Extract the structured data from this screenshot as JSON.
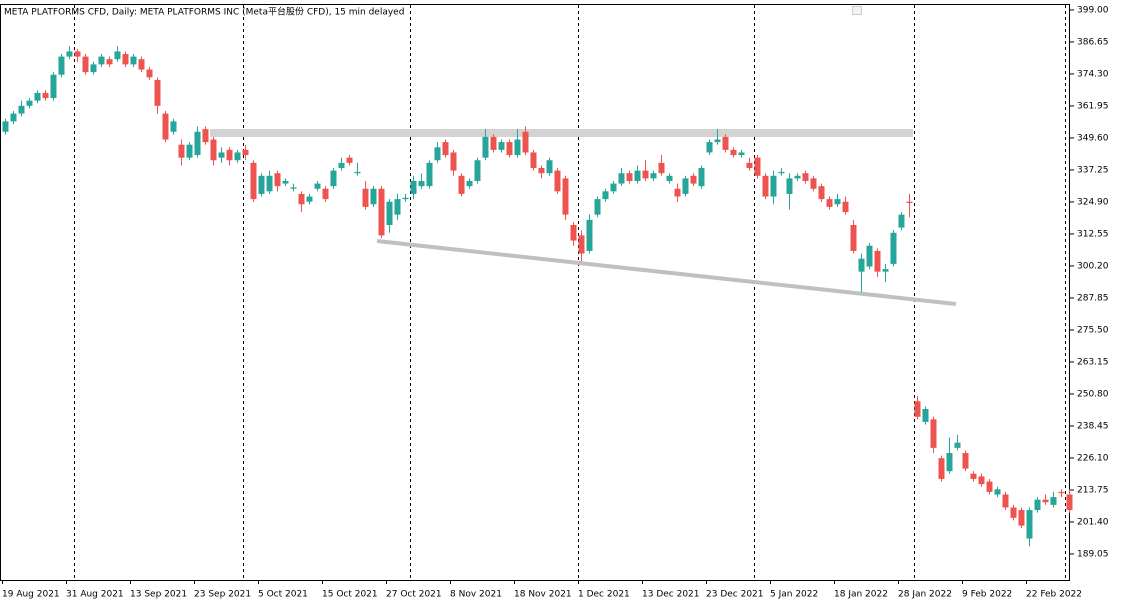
{
  "chart_data": {
    "type": "candlestick",
    "title": "META PLATFORMS CFD, Daily:  META PLATFORMS INC (Meta平台股份 CFD), 15 min delayed",
    "up_color": "#26a69a",
    "down_color": "#ef5350",
    "categories": [
      "19 Aug 2021",
      null,
      null,
      null,
      null,
      null,
      null,
      null,
      "31 Aug 2021",
      null,
      null,
      null,
      null,
      null,
      null,
      null,
      "13 Sep 2021",
      null,
      null,
      null,
      null,
      null,
      null,
      null,
      "23 Sep 2021",
      null,
      null,
      null,
      null,
      null,
      null,
      null,
      "5 Oct 2021",
      null,
      null,
      null,
      null,
      null,
      null,
      null,
      "15 Oct 2021",
      null,
      null,
      null,
      null,
      null,
      null,
      null,
      "27 Oct 2021",
      null,
      null,
      null,
      null,
      null,
      null,
      null,
      "8 Nov 2021",
      null,
      null,
      null,
      null,
      null,
      null,
      null,
      "18 Nov 2021",
      null,
      null,
      null,
      null,
      null,
      null,
      null,
      "1 Dec 2021",
      null,
      null,
      null,
      null,
      null,
      null,
      null,
      "13 Dec 2021",
      null,
      null,
      null,
      null,
      null,
      null,
      null,
      "23 Dec 2021",
      null,
      null,
      null,
      null,
      null,
      null,
      null,
      "5 Jan 2022",
      null,
      null,
      null,
      null,
      null,
      null,
      null,
      "18 Jan 2022",
      null,
      null,
      null,
      null,
      null,
      null,
      null,
      "28 Jan 2022",
      null,
      null,
      null,
      null,
      null,
      null,
      null,
      "9 Feb 2022",
      null,
      null,
      null,
      null,
      null,
      null,
      null,
      "22 Feb 2022",
      null,
      null,
      null,
      null,
      null
    ],
    "open": [
      352,
      356,
      359,
      362,
      364,
      367,
      365,
      374,
      381,
      383,
      381,
      375,
      378,
      380,
      380,
      382,
      378,
      380,
      376,
      372,
      359,
      352,
      347,
      342,
      343,
      353,
      349,
      342,
      345,
      341,
      345,
      340,
      328,
      329,
      336,
      332,
      330,
      328,
      325,
      330,
      330,
      331,
      338,
      342,
      336,
      330,
      324,
      330,
      316,
      320,
      326,
      328,
      331,
      331,
      341,
      348,
      344,
      335,
      331,
      333,
      342,
      350,
      345,
      348,
      343,
      352,
      344,
      338,
      336,
      337,
      334,
      316,
      312,
      306,
      320,
      326,
      329,
      332,
      336,
      333,
      337,
      334,
      340,
      333,
      330,
      328,
      335,
      331,
      344,
      348,
      350,
      345,
      343,
      340,
      342,
      335,
      327,
      336,
      328,
      334,
      336,
      334,
      331,
      326,
      324,
      325,
      316,
      298,
      300,
      306,
      298,
      301,
      315,
      325,
      248,
      240,
      241,
      226,
      221,
      230,
      228,
      220,
      219,
      217,
      212,
      212,
      207,
      206,
      195,
      206,
      210,
      208,
      213,
      212
    ],
    "high": [
      357,
      360,
      364,
      365,
      368,
      368,
      375,
      382,
      385,
      384,
      382,
      379,
      382,
      381,
      385,
      383,
      382,
      381,
      377,
      373,
      360,
      357,
      349,
      348,
      354,
      354,
      350,
      346,
      346,
      345,
      347,
      341,
      336,
      337,
      337,
      334,
      332,
      329,
      328,
      333,
      331,
      338,
      342,
      343,
      340,
      333,
      331,
      331,
      326,
      328,
      328,
      335,
      336,
      341,
      348,
      349,
      345,
      336,
      334,
      342,
      353,
      351,
      349,
      349,
      353,
      354,
      345,
      339,
      342,
      338,
      335,
      317,
      314,
      320,
      327,
      330,
      333,
      338,
      337,
      339,
      341,
      337,
      343,
      336,
      332,
      335,
      336,
      339,
      349,
      353,
      351,
      346,
      345,
      342,
      343,
      336,
      337,
      338,
      336,
      336,
      337,
      335,
      332,
      327,
      328,
      327,
      318,
      305,
      309,
      307,
      301,
      314,
      321,
      328,
      250,
      246,
      242,
      227,
      234,
      235,
      229,
      221,
      220,
      218,
      215,
      213,
      208,
      207,
      207,
      211,
      212,
      213,
      214,
      214
    ],
    "low": [
      351,
      355,
      358,
      361,
      363,
      364,
      364,
      373,
      380,
      379,
      374,
      374,
      377,
      377,
      379,
      377,
      377,
      375,
      372,
      359,
      348,
      351,
      339,
      341,
      342,
      347,
      339,
      340,
      339,
      340,
      341,
      325,
      327,
      328,
      329,
      331,
      329,
      321,
      324,
      329,
      325,
      330,
      337,
      339,
      335,
      322,
      323,
      311,
      313,
      318,
      325,
      326,
      330,
      330,
      340,
      342,
      335,
      327,
      330,
      332,
      341,
      344,
      344,
      342,
      342,
      343,
      337,
      334,
      335,
      328,
      318,
      308,
      302,
      305,
      319,
      325,
      328,
      331,
      332,
      332,
      333,
      333,
      335,
      332,
      325,
      327,
      331,
      330,
      343,
      347,
      344,
      342,
      342,
      337,
      334,
      326,
      324,
      335,
      322,
      333,
      332,
      329,
      325,
      322,
      323,
      320,
      305,
      290,
      299,
      296,
      294,
      300,
      314,
      319,
      241,
      239,
      228,
      217,
      220,
      229,
      221,
      217,
      215,
      212,
      211,
      206,
      202,
      199,
      192,
      205,
      208,
      207,
      211,
      205
    ],
    "close": [
      356,
      359,
      362,
      364,
      367,
      365,
      374,
      381,
      383,
      381,
      375,
      378,
      381,
      378,
      383,
      378,
      381,
      376,
      373,
      362,
      349,
      356,
      342,
      347,
      352,
      348,
      341,
      344,
      341,
      344,
      343,
      326,
      335,
      335,
      331,
      333,
      330.5,
      324,
      327,
      332,
      326,
      337,
      340,
      340,
      336.5,
      323,
      330,
      312,
      325,
      326,
      326.5,
      333,
      333,
      340,
      346,
      343,
      337,
      328,
      333,
      341,
      350,
      345,
      348,
      343,
      349,
      344,
      338,
      336,
      341,
      329,
      320,
      310,
      305,
      318,
      326,
      329,
      332,
      336,
      333,
      337,
      334,
      336,
      336,
      335,
      327,
      334,
      332,
      338,
      348,
      349,
      345,
      343,
      344,
      338,
      335,
      327,
      335,
      336.5,
      334,
      335,
      333,
      330,
      326,
      323,
      326,
      321,
      306,
      303,
      308,
      298,
      299,
      313,
      320,
      324.5,
      242,
      245,
      230,
      218,
      228,
      232,
      222,
      218,
      216,
      213,
      214,
      207,
      203,
      200,
      206,
      210,
      209,
      211,
      212.5,
      206
    ],
    "ylim": [
      179,
      401.3
    ],
    "yticks": [
      {
        "value": 399,
        "label": "399.00"
      },
      386.65,
      {
        "value": 374.3,
        "label": "374.30"
      },
      361.95,
      {
        "value": 349.6,
        "label": "349.60"
      },
      337.25,
      {
        "value": 324.9,
        "label": "324.90"
      },
      312.55,
      {
        "value": 300.2,
        "label": "300.20"
      },
      287.85,
      {
        "value": 275.5,
        "label": "275.50"
      },
      263.15,
      {
        "value": 250.8,
        "label": "250.80"
      },
      238.45,
      {
        "value": 226.1,
        "label": "226.10"
      },
      213.75,
      {
        "value": 201.4,
        "label": "201.40"
      },
      189.05
    ]
  }
}
